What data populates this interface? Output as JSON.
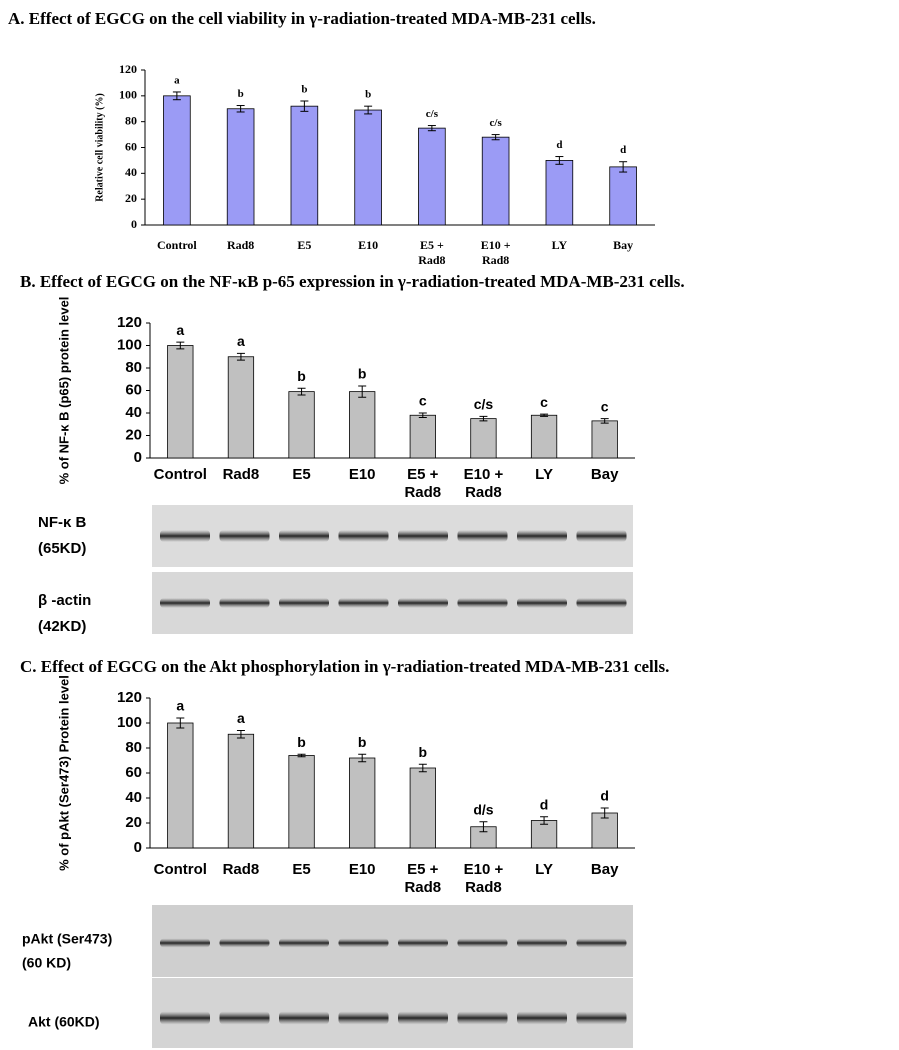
{
  "chart_data": [
    {
      "type": "bar",
      "title": "A. Effect of EGCG on the cell viability in γ-radiation-treated MDA-MB-231 cells.",
      "ylabel": "Relative cell viability (%)",
      "categories": [
        "Control",
        "Rad8",
        "E5",
        "E10",
        "E5 + Rad8",
        "E10 + Rad8",
        "LY",
        "Bay"
      ],
      "values": [
        100,
        90,
        92,
        89,
        75,
        68,
        50,
        45
      ],
      "errors": [
        3,
        2.5,
        4,
        3,
        2,
        2,
        3,
        4
      ],
      "annotations": [
        "a",
        "b",
        "b",
        "b",
        "c/s",
        "c/s",
        "d",
        "d"
      ],
      "color": "#9b9bf5",
      "ylim": [
        0,
        120
      ],
      "yticks": [
        0,
        20,
        40,
        60,
        80,
        100,
        120
      ]
    },
    {
      "type": "bar",
      "title": "B. Effect of EGCG on the NF-κB p-65 expression in γ-radiation-treated MDA-MB-231 cells.",
      "ylabel": "% of NF-κ B (p65) protein level",
      "categories": [
        "Control",
        "Rad8",
        "E5",
        "E10",
        "E5 + Rad8",
        "E10 + Rad8",
        "LY",
        "Bay"
      ],
      "values": [
        100,
        90,
        59,
        59,
        38,
        35,
        38,
        33
      ],
      "errors": [
        3,
        3,
        3,
        5,
        2,
        2,
        1,
        2
      ],
      "annotations": [
        "a",
        "a",
        "b",
        "b",
        "c",
        "c/s",
        "c",
        "c"
      ],
      "color": "#c0c0c0",
      "ylim": [
        0,
        120
      ],
      "yticks": [
        0,
        20,
        40,
        60,
        80,
        100,
        120
      ]
    },
    {
      "type": "bar",
      "title": "C. Effect of EGCG on the Akt phosphorylation in γ-radiation-treated MDA-MB-231 cells.",
      "ylabel": "% of pAkt (Ser473) Protein level",
      "categories": [
        "Control",
        "Rad8",
        "E5",
        "E10",
        "E5 + Rad8",
        "E10 + Rad8",
        "LY",
        "Bay"
      ],
      "values": [
        100,
        91,
        74,
        72,
        64,
        17,
        22,
        28
      ],
      "errors": [
        4,
        3,
        1,
        3,
        3,
        4,
        3,
        4
      ],
      "annotations": [
        "a",
        "a",
        "b",
        "b",
        "b",
        "d/s",
        "d",
        "d"
      ],
      "color": "#c0c0c0",
      "ylim": [
        0,
        120
      ],
      "yticks": [
        0,
        20,
        40,
        60,
        80,
        100,
        120
      ]
    }
  ],
  "blots": [
    {
      "label": "NF-κ B",
      "sublabel": "(65KD)"
    },
    {
      "label": "β -actin",
      "sublabel": "(42KD)"
    },
    {
      "label": "pAkt (Ser473)",
      "sublabel": "(60 KD)"
    },
    {
      "label": "Akt (60KD)"
    }
  ]
}
